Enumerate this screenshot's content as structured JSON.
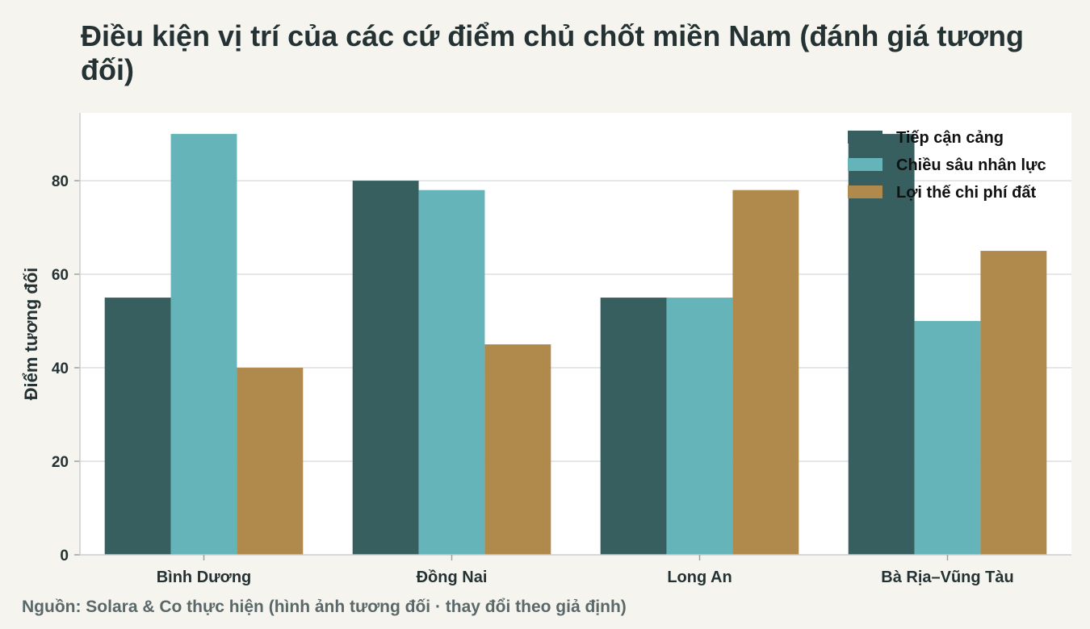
{
  "title": "Điều kiện vị trí của các cứ điểm chủ chốt miền Nam (đánh giá tương đối)",
  "source": "Nguồn: Solara & Co thực hiện (hình ảnh tương đối · thay đổi theo giả định)",
  "colors": {
    "background": "#f5f4ef",
    "plot_background": "#ffffff",
    "grid": "#dcdfe0",
    "text": "#243234"
  },
  "chart_data": {
    "type": "bar",
    "categories": [
      "Bình Dương",
      "Đồng Nai",
      "Long An",
      "Bà Rịa–Vũng Tàu"
    ],
    "series": [
      {
        "name": "Tiếp cận cảng",
        "color": "#375f60",
        "values": [
          55,
          80,
          55,
          90
        ]
      },
      {
        "name": "Chiều sâu nhân lực",
        "color": "#64b4b9",
        "values": [
          90,
          78,
          55,
          50
        ]
      },
      {
        "name": "Lợi thế chi phí đất",
        "color": "#b0894c",
        "values": [
          40,
          45,
          78,
          65
        ]
      }
    ],
    "xlabel": "",
    "ylabel": "Điểm tương đối",
    "ylim": [
      0,
      94.5
    ],
    "yticks": [
      0,
      20,
      40,
      60,
      80
    ],
    "grid": true,
    "legend_position": "top-right"
  }
}
